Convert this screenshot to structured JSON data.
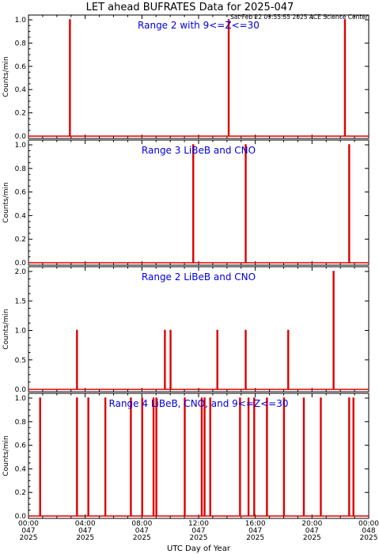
{
  "title": "LET ahead BUFRATES Data for 2025-047",
  "timestamp": "Sat Feb 22 09:55:55 2025 ACE Science Center",
  "chart_data": {
    "type": "line",
    "xlabel": "UTC Day of Year",
    "xlim_hours": [
      0,
      24
    ],
    "x_ticks": [
      {
        "time": "00:00",
        "doy": "047",
        "year": "2025"
      },
      {
        "time": "04:00",
        "doy": "047",
        "year": "2025"
      },
      {
        "time": "08:00",
        "doy": "047",
        "year": "2025"
      },
      {
        "time": "12:00",
        "doy": "047",
        "year": "2025"
      },
      {
        "time": "16:00",
        "doy": "047",
        "year": "2025"
      },
      {
        "time": "20:00",
        "doy": "047",
        "year": "2025"
      },
      {
        "time": "00:00",
        "doy": "048",
        "year": "2025"
      }
    ],
    "line_color": "#dd0000",
    "label_color": "#0000dd",
    "panels": [
      {
        "label": "Range 2 with 9<=Z<=30",
        "ylabel": "Counts/min",
        "ylim": [
          0,
          1.0
        ],
        "yticks": [
          "0.0",
          "0.2",
          "0.4",
          "0.6",
          "0.8",
          "1.0"
        ],
        "spikes": [
          {
            "x": 2.9,
            "y": 1
          },
          {
            "x": 14.1,
            "y": 1
          },
          {
            "x": 22.3,
            "y": 1
          }
        ]
      },
      {
        "label": "Range 3 LiBeB and CNO",
        "ylabel": "Counts/min",
        "ylim": [
          0,
          1.0
        ],
        "yticks": [
          "0.0",
          "0.2",
          "0.4",
          "0.6",
          "0.8",
          "1.0"
        ],
        "spikes": [
          {
            "x": 11.6,
            "y": 1
          },
          {
            "x": 15.3,
            "y": 1
          },
          {
            "x": 22.6,
            "y": 1
          }
        ]
      },
      {
        "label": "Range 2 LiBeB and CNO",
        "ylabel": "Counts/min",
        "ylim": [
          0,
          2.0
        ],
        "yticks": [
          "0.0",
          "0.5",
          "1.0",
          "1.5",
          "2.0"
        ],
        "spikes": [
          {
            "x": 3.4,
            "y": 1
          },
          {
            "x": 9.6,
            "y": 1
          },
          {
            "x": 10.0,
            "y": 1
          },
          {
            "x": 13.3,
            "y": 1
          },
          {
            "x": 15.3,
            "y": 1
          },
          {
            "x": 18.3,
            "y": 1
          },
          {
            "x": 21.5,
            "y": 2
          }
        ]
      },
      {
        "label": "Range 4 LiBeB, CNO, and 9<=Z<=30",
        "ylabel": "Counts/min",
        "ylim": [
          0,
          1.0
        ],
        "yticks": [
          "0.0",
          "0.2",
          "0.4",
          "0.6",
          "0.8",
          "1.0"
        ],
        "spikes": [
          {
            "x": 0.8,
            "y": 1
          },
          {
            "x": 3.4,
            "y": 1
          },
          {
            "x": 4.2,
            "y": 1
          },
          {
            "x": 5.4,
            "y": 1
          },
          {
            "x": 7.2,
            "y": 1
          },
          {
            "x": 8.0,
            "y": 1
          },
          {
            "x": 8.8,
            "y": 1
          },
          {
            "x": 9.0,
            "y": 1
          },
          {
            "x": 11.0,
            "y": 1
          },
          {
            "x": 12.2,
            "y": 1
          },
          {
            "x": 12.4,
            "y": 1
          },
          {
            "x": 12.8,
            "y": 1
          },
          {
            "x": 14.9,
            "y": 1
          },
          {
            "x": 15.5,
            "y": 1
          },
          {
            "x": 15.9,
            "y": 1
          },
          {
            "x": 16.8,
            "y": 1
          },
          {
            "x": 18.0,
            "y": 1
          },
          {
            "x": 19.4,
            "y": 1
          },
          {
            "x": 20.6,
            "y": 1
          },
          {
            "x": 22.6,
            "y": 1
          },
          {
            "x": 22.9,
            "y": 1
          }
        ]
      }
    ]
  }
}
